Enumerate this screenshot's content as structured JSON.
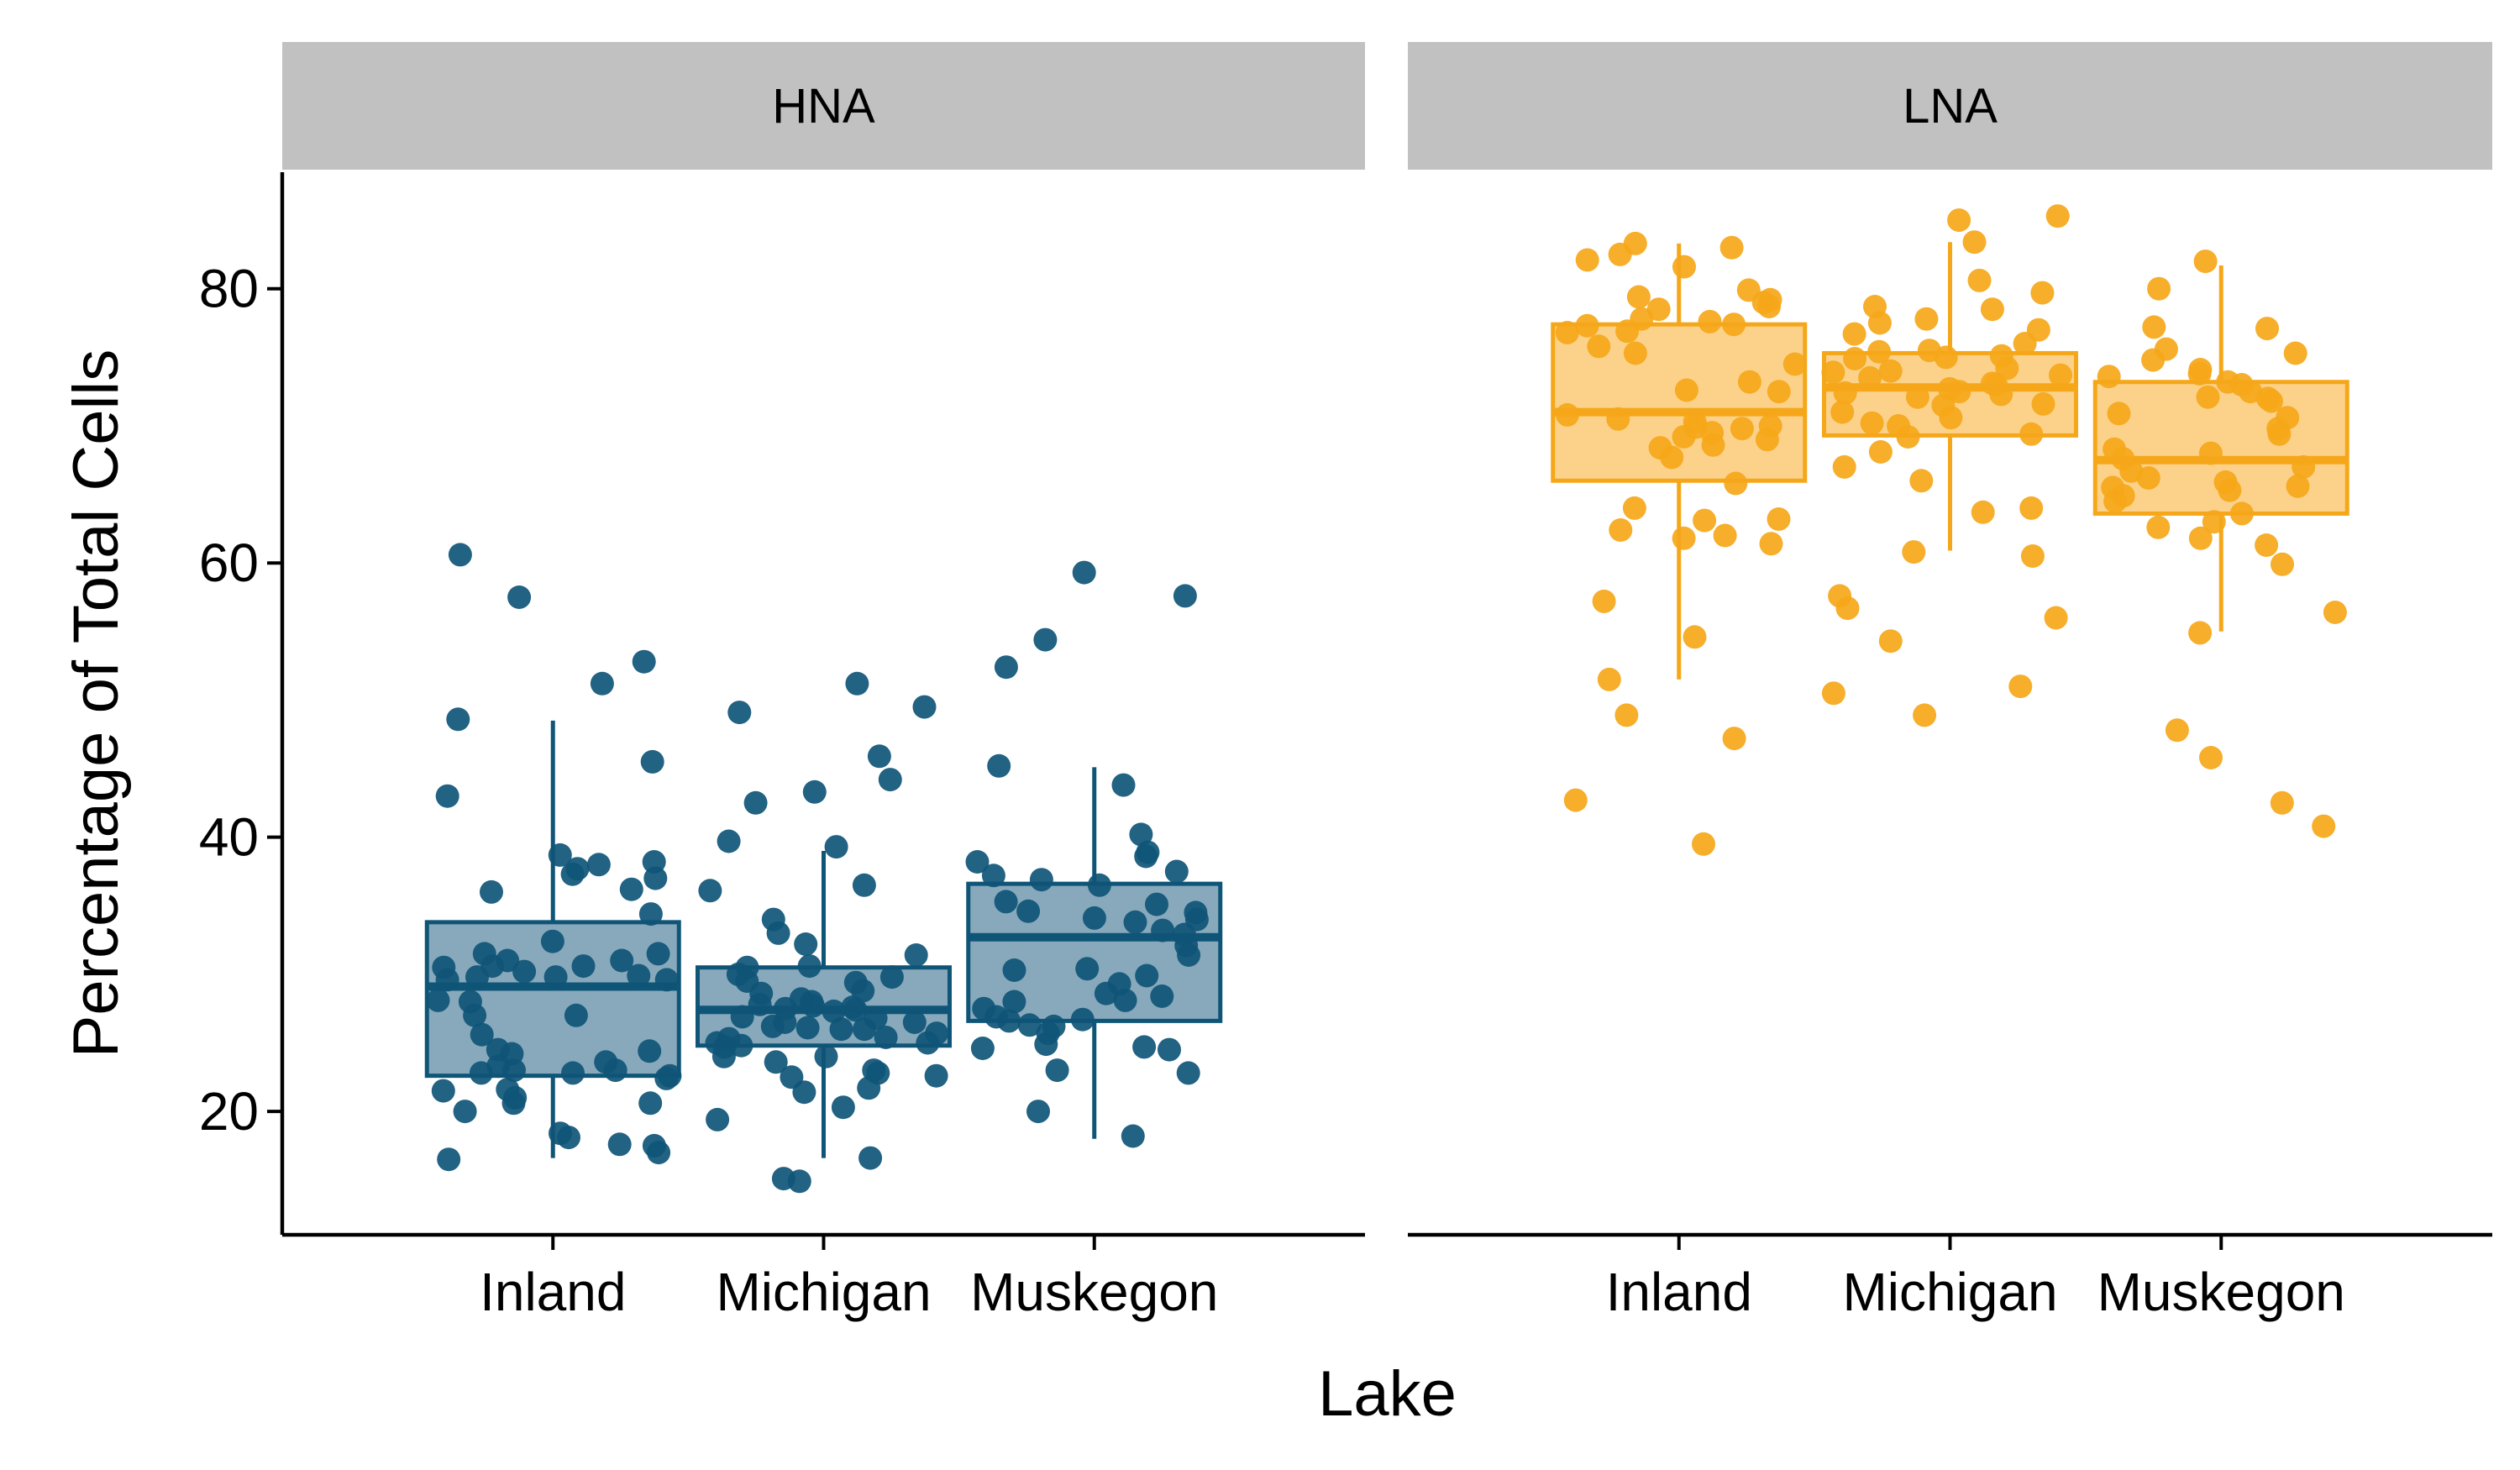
{
  "chart_data": {
    "type": "box-jitter",
    "title": "",
    "xlabel": "Lake",
    "ylabel": "Percentage of Total Cells",
    "ylim": [
      11,
      88.5
    ],
    "yticks": [
      20,
      40,
      60,
      80
    ],
    "categories": [
      "Inland",
      "Michigan",
      "Muskegon"
    ],
    "grid": false,
    "legend": "none",
    "facets": [
      {
        "label": "HNA",
        "color": "#0F5577",
        "fill": "#88A9BB",
        "boxes": [
          {
            "category": "Inland",
            "whisker_low": 16.6,
            "q1": 22.6,
            "median": 29.1,
            "q3": 33.8,
            "whisker_high": 48.5
          },
          {
            "category": "Michigan",
            "whisker_low": 16.6,
            "q1": 24.8,
            "median": 27.4,
            "q3": 30.5,
            "whisker_high": 39.0
          },
          {
            "category": "Muskegon",
            "whisker_low": 18.0,
            "q1": 26.6,
            "median": 32.7,
            "q3": 36.6,
            "whisker_high": 45.1
          }
        ],
        "points": [
          {
            "category": "Inland",
            "values": [
              48.6,
              36.2,
              31.5,
              30.5,
              28.1,
              29.6,
              23.0,
              22.8,
              20.6,
              17.6,
              20.6,
              22.8,
              23.3,
              31.0,
              29.6,
              28.0,
              21.0,
              21.5,
              24.5,
              27.0,
              29.9,
              31.5,
              34.4,
              36.0,
              38.2,
              37.0,
              31.0,
              30.6,
              29.8,
              25.6,
              24.4,
              23.0,
              22.4,
              17.0,
              17.5,
              43.0,
              45.5,
              52.8,
              57.5,
              60.6,
              38.0,
              37.3,
              30.6,
              29.8,
              22.6,
              21.6,
              38.7,
              51.2,
              37.7,
              32.4,
              30.2,
              27.0,
              24.2,
              23.6,
              20.0,
              18.4,
              16.5,
              18.1
            ]
          },
          {
            "category": "Michigan",
            "values": [
              29.5,
              28.8,
              25.0,
              26.5,
              27.6,
              43.3,
              39.7,
              49.1,
              39.3,
              25.3,
              24.8,
              26.1,
              27.8,
              28.6,
              26.0,
              24.0,
              22.8,
              20.3,
              14.9,
              34.0,
              31.4,
              30.5,
              28.2,
              27.4,
              26.5,
              25.7,
              24.0,
              23.0,
              21.7,
              42.5,
              33.0,
              32.2,
              29.8,
              27.3,
              26.2,
              22.5,
              23.6,
              51.2,
              30.0,
              28.0,
              26.8,
              25.0,
              36.1,
              30.6,
              29.4,
              27.7,
              26.0,
              24.7,
              16.6,
              19.4,
              44.2,
              45.9,
              49.5,
              36.5,
              27.5,
              26.9,
              25.4,
              22.6,
              15.1,
              21.4
            ]
          },
          {
            "category": "Muskegon",
            "values": [
              45.2,
              35.3,
              36.9,
              33.2,
              27.5,
              26.7,
              28.4,
              29.9,
              23.0,
              40.2,
              30.3,
              24.6,
              22.8,
              18.2,
              57.6,
              34.6,
              32.9,
              30.4,
              25.7,
              24.9,
              24.5,
              28.1,
              32.1,
              36.5,
              43.8,
              34.5,
              31.4,
              26.3,
              35.1,
              33.8,
              34.1,
              24.7,
              59.3,
              38.6,
              37.5,
              38.2,
              26.6,
              26.2,
              20.0,
              38.9,
              37.2,
              34.0,
              29.3,
              28.6,
              26.9,
              52.4,
              54.4,
              28.0
            ]
          }
        ]
      },
      {
        "label": "LNA",
        "color": "#F5A719",
        "fill": "#FCD28B",
        "boxes": [
          {
            "category": "Inland",
            "whisker_low": 51.5,
            "q1": 66.0,
            "median": 71.0,
            "q3": 77.4,
            "whisker_high": 83.3
          },
          {
            "category": "Michigan",
            "whisker_low": 60.9,
            "q1": 69.3,
            "median": 72.8,
            "q3": 75.3,
            "whisker_high": 83.4
          },
          {
            "category": "Muskegon",
            "whisker_low": 55.0,
            "q1": 63.6,
            "median": 67.5,
            "q3": 73.2,
            "whisker_high": 81.7
          }
        ],
        "points": [
          {
            "category": "Inland",
            "values": [
              82.1,
              82.5,
              83.0,
              83.3,
              81.6,
              79.4,
              78.7,
              77.8,
              76.9,
              77.3,
              74.5,
              72.5,
              70.8,
              69.8,
              69.0,
              68.6,
              68.4,
              69.2,
              69.9,
              70.5,
              70.3,
              69.5,
              73.2,
              75.3,
              77.4,
              76.8,
              79.0,
              79.9,
              79.2,
              78.5,
              77.6,
              75.8,
              72.6,
              70.0,
              67.7,
              65.8,
              64.0,
              62.4,
              63.2,
              63.1,
              61.8,
              62.0,
              61.4,
              57.2,
              54.6,
              51.5,
              48.9,
              47.2,
              42.7,
              39.5
            ]
          },
          {
            "category": "Michigan",
            "values": [
              79.7,
              78.7,
              75.0,
              73.0,
              72.4,
              73.7,
              75.1,
              76.0,
              75.4,
              73.9,
              72.7,
              71.6,
              70.6,
              69.4,
              69.2,
              70.0,
              71.0,
              72.1,
              72.5,
              73.1,
              74.2,
              73.5,
              72.3,
              71.5,
              70.2,
              75.5,
              78.5,
              76.7,
              77.0,
              77.5,
              74.9,
              74.0,
              66.0,
              64.0,
              60.8,
              60.5,
              57.6,
              56.0,
              54.3,
              51.0,
              48.9,
              85.0,
              85.3,
              83.4,
              80.6,
              77.8,
              68.1,
              67.0,
              63.7,
              56.7,
              50.5
            ]
          },
          {
            "category": "Muskegon",
            "values": [
              80.0,
              77.1,
              73.6,
              74.1,
              72.1,
              69.8,
              68.0,
              65.6,
              61.8,
              73.8,
              75.3,
              75.6,
              77.2,
              73.2,
              72.0,
              70.9,
              68.3,
              67.0,
              65.9,
              65.3,
              64.9,
              63.0,
              63.6,
              65.5,
              66.2,
              67.6,
              69.4,
              70.6,
              71.8,
              72.5,
              73.0,
              74.8,
              82.0,
              66.7,
              64.5,
              62.6,
              61.3,
              59.9,
              56.4,
              54.9,
              47.8,
              45.8,
              42.5,
              40.8
            ]
          }
        ]
      }
    ]
  }
}
